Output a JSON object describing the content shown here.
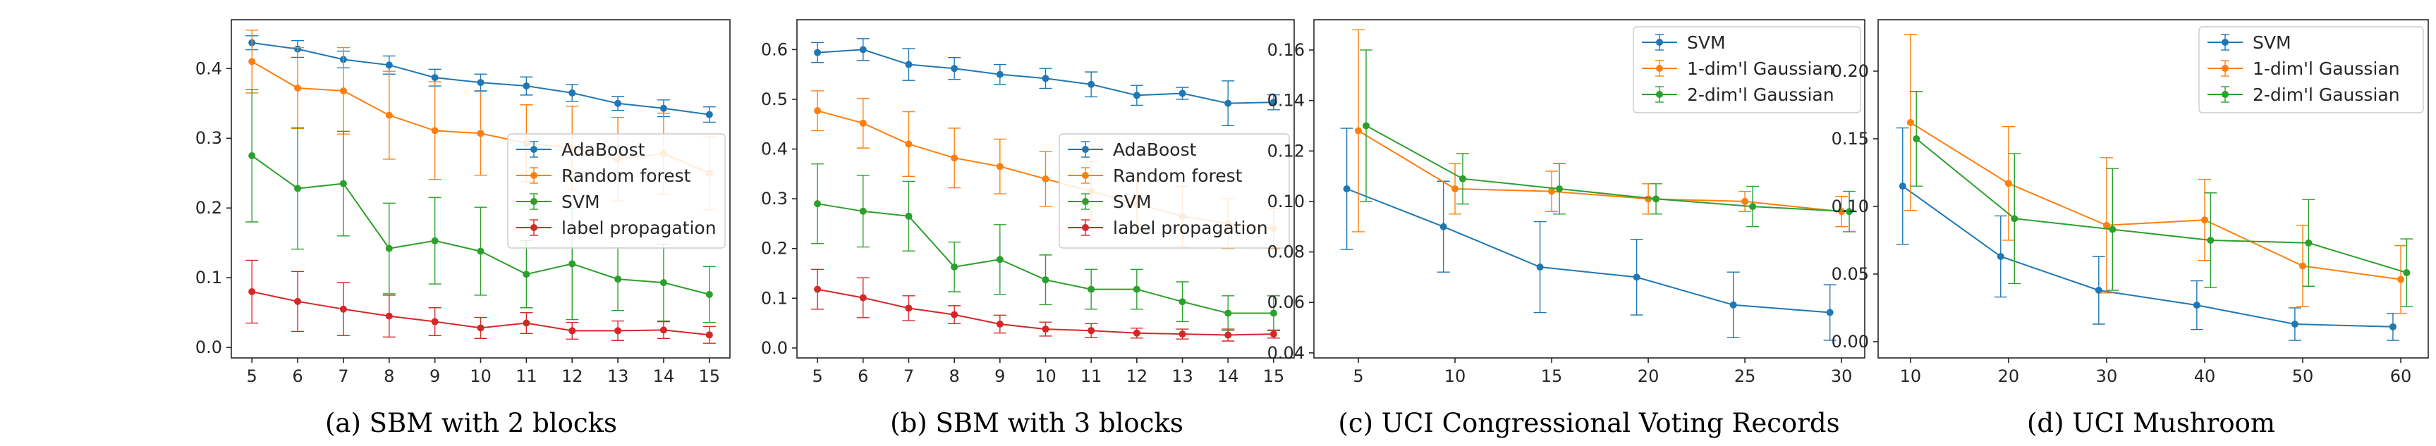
{
  "figure": {
    "panels": [
      {
        "caption": "(a) SBM with 2 blocks"
      },
      {
        "caption": "(b) SBM with 3 blocks"
      },
      {
        "caption": "(c) UCI Congressional Voting Records"
      },
      {
        "caption": "(d) UCI Mushroom"
      }
    ]
  },
  "chart_data": [
    {
      "type": "line",
      "caption": "(a) SBM with 2 blocks",
      "x": [
        5,
        6,
        7,
        8,
        9,
        10,
        11,
        12,
        13,
        14,
        15
      ],
      "xticks": [
        5,
        6,
        7,
        8,
        9,
        10,
        11,
        12,
        13,
        14,
        15
      ],
      "xlim": [
        4.55,
        15.45
      ],
      "yticks": [
        0.0,
        0.1,
        0.2,
        0.3,
        0.4
      ],
      "ytick_labels": [
        "0.0",
        "0.1",
        "0.2",
        "0.3",
        "0.4"
      ],
      "ylim": [
        -0.015,
        0.47
      ],
      "grid": false,
      "legend_position": "center-right",
      "error_bars": true,
      "series": [
        {
          "name": "AdaBoost",
          "color": "#1f77b4",
          "values": [
            0.437,
            0.428,
            0.413,
            0.405,
            0.387,
            0.38,
            0.375,
            0.365,
            0.35,
            0.343,
            0.334
          ],
          "errors": [
            0.01,
            0.012,
            0.012,
            0.013,
            0.012,
            0.012,
            0.013,
            0.012,
            0.01,
            0.012,
            0.011
          ]
        },
        {
          "name": "Random forest",
          "color": "#ff7f0e",
          "values": [
            0.41,
            0.372,
            0.368,
            0.333,
            0.311,
            0.307,
            0.293,
            0.286,
            0.27,
            0.278,
            0.25
          ],
          "errors": [
            0.045,
            0.058,
            0.062,
            0.063,
            0.07,
            0.06,
            0.055,
            0.06,
            0.06,
            0.058,
            0.052
          ]
        },
        {
          "name": "SVM",
          "color": "#2ca02c",
          "values": [
            0.275,
            0.228,
            0.235,
            0.142,
            0.153,
            0.138,
            0.105,
            0.12,
            0.098,
            0.093,
            0.076
          ],
          "errors": [
            0.095,
            0.087,
            0.075,
            0.065,
            0.062,
            0.063,
            0.048,
            0.08,
            0.045,
            0.055,
            0.04
          ]
        },
        {
          "name": "label propagation",
          "color": "#d62728",
          "values": [
            0.08,
            0.066,
            0.055,
            0.045,
            0.037,
            0.028,
            0.035,
            0.024,
            0.024,
            0.025,
            0.018
          ],
          "errors": [
            0.045,
            0.043,
            0.038,
            0.03,
            0.02,
            0.015,
            0.015,
            0.012,
            0.014,
            0.012,
            0.012
          ]
        }
      ]
    },
    {
      "type": "line",
      "caption": "(b) SBM with 3 blocks",
      "x": [
        5,
        6,
        7,
        8,
        9,
        10,
        11,
        12,
        13,
        14,
        15
      ],
      "xticks": [
        5,
        6,
        7,
        8,
        9,
        10,
        11,
        12,
        13,
        14,
        15
      ],
      "xlim": [
        4.55,
        15.45
      ],
      "yticks": [
        0.0,
        0.1,
        0.2,
        0.3,
        0.4,
        0.5,
        0.6
      ],
      "ytick_labels": [
        "0.0",
        "0.1",
        "0.2",
        "0.3",
        "0.4",
        "0.5",
        "0.6"
      ],
      "ylim": [
        -0.02,
        0.66
      ],
      "grid": false,
      "legend_position": "center-right",
      "error_bars": true,
      "series": [
        {
          "name": "AdaBoost",
          "color": "#1f77b4",
          "values": [
            0.594,
            0.6,
            0.57,
            0.562,
            0.55,
            0.542,
            0.53,
            0.508,
            0.512,
            0.492,
            0.494
          ],
          "errors": [
            0.02,
            0.022,
            0.032,
            0.022,
            0.02,
            0.02,
            0.025,
            0.02,
            0.012,
            0.045,
            0.015
          ]
        },
        {
          "name": "Random forest",
          "color": "#ff7f0e",
          "values": [
            0.477,
            0.452,
            0.41,
            0.382,
            0.365,
            0.34,
            0.315,
            0.29,
            0.265,
            0.25,
            0.24
          ],
          "errors": [
            0.04,
            0.05,
            0.065,
            0.06,
            0.055,
            0.055,
            0.06,
            0.06,
            0.06,
            0.05,
            0.04
          ]
        },
        {
          "name": "SVM",
          "color": "#2ca02c",
          "values": [
            0.29,
            0.275,
            0.265,
            0.163,
            0.178,
            0.137,
            0.118,
            0.118,
            0.093,
            0.07,
            0.07
          ],
          "errors": [
            0.08,
            0.072,
            0.07,
            0.05,
            0.07,
            0.05,
            0.04,
            0.04,
            0.04,
            0.035,
            0.035
          ]
        },
        {
          "name": "label propagation",
          "color": "#d62728",
          "values": [
            0.118,
            0.101,
            0.08,
            0.067,
            0.048,
            0.038,
            0.035,
            0.03,
            0.028,
            0.026,
            0.028
          ],
          "errors": [
            0.04,
            0.04,
            0.025,
            0.018,
            0.018,
            0.014,
            0.014,
            0.01,
            0.01,
            0.012,
            0.008
          ]
        }
      ]
    },
    {
      "type": "line",
      "caption": "(c) UCI Congressional Voting Records",
      "x": [
        4.4,
        5,
        9.4,
        10,
        14.4,
        15,
        19.4,
        20,
        24.4,
        25,
        29.4,
        30
      ],
      "xticks": [
        5,
        10,
        15,
        20,
        25,
        30
      ],
      "xlim": [
        2.7,
        31.2
      ],
      "yticks": [
        0.04,
        0.06,
        0.08,
        0.1,
        0.12,
        0.14,
        0.16
      ],
      "ytick_labels": [
        "0.04",
        "0.06",
        "0.08",
        "0.10",
        "0.12",
        "0.14",
        "0.16"
      ],
      "ylim": [
        0.038,
        0.172
      ],
      "grid": false,
      "legend_position": "top-right",
      "error_bars": true,
      "series": [
        {
          "name": "SVM",
          "color": "#1f77b4",
          "x": [
            4.4,
            9.4,
            14.4,
            19.4,
            24.4,
            29.4
          ],
          "values": [
            0.105,
            0.09,
            0.074,
            0.07,
            0.059,
            0.056
          ],
          "errors": [
            0.024,
            0.018,
            0.018,
            0.015,
            0.013,
            0.011
          ]
        },
        {
          "name": "1-dim'l Gaussian",
          "color": "#ff7f0e",
          "x": [
            5,
            10,
            15,
            20,
            25,
            30
          ],
          "values": [
            0.128,
            0.105,
            0.104,
            0.101,
            0.1,
            0.096
          ],
          "errors": [
            0.04,
            0.01,
            0.008,
            0.006,
            0.004,
            0.006
          ]
        },
        {
          "name": "2-dim'l Gaussian",
          "color": "#2ca02c",
          "x": [
            5.4,
            10.4,
            15.4,
            20.4,
            25.4,
            30.4
          ],
          "values": [
            0.13,
            0.109,
            0.105,
            0.101,
            0.098,
            0.096
          ],
          "errors": [
            0.03,
            0.01,
            0.01,
            0.006,
            0.008,
            0.008
          ]
        }
      ]
    },
    {
      "type": "line",
      "caption": "(d) UCI Mushroom",
      "x": [
        10,
        20,
        30,
        40,
        50,
        60
      ],
      "xticks": [
        10,
        20,
        30,
        40,
        50,
        60
      ],
      "xlim": [
        6.7,
        62.8
      ],
      "yticks": [
        0.0,
        0.05,
        0.1,
        0.15,
        0.2
      ],
      "ytick_labels": [
        "0.00",
        "0.05",
        "0.10",
        "0.15",
        "0.20"
      ],
      "ylim": [
        -0.012,
        0.238
      ],
      "grid": false,
      "legend_position": "top-right",
      "error_bars": true,
      "series": [
        {
          "name": "SVM",
          "color": "#1f77b4",
          "x": [
            9.2,
            19.2,
            29.2,
            39.2,
            49.2,
            59.2
          ],
          "values": [
            0.115,
            0.063,
            0.038,
            0.027,
            0.013,
            0.011
          ],
          "errors": [
            0.043,
            0.03,
            0.025,
            0.018,
            0.012,
            0.01
          ]
        },
        {
          "name": "1-dim'l Gaussian",
          "color": "#ff7f0e",
          "x": [
            10,
            20,
            30,
            40,
            50,
            60
          ],
          "values": [
            0.162,
            0.117,
            0.086,
            0.09,
            0.056,
            0.046
          ],
          "errors": [
            0.065,
            0.042,
            0.05,
            0.03,
            0.03,
            0.025
          ]
        },
        {
          "name": "2-dim'l Gaussian",
          "color": "#2ca02c",
          "x": [
            10.6,
            20.6,
            30.6,
            40.6,
            50.6,
            60.6
          ],
          "values": [
            0.15,
            0.091,
            0.083,
            0.075,
            0.073,
            0.051
          ],
          "errors": [
            0.035,
            0.048,
            0.045,
            0.035,
            0.032,
            0.025
          ]
        }
      ]
    }
  ]
}
